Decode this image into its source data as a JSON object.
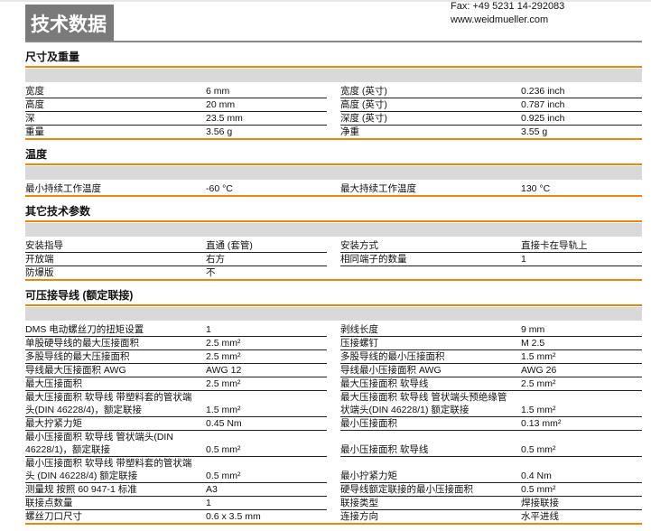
{
  "header": {
    "title": "技术数据",
    "fax": "Fax: +49 5231 14-292083",
    "website": "www.weidmueller.com"
  },
  "sections": [
    {
      "title": "尺寸及重量",
      "rows": [
        [
          "宽度",
          "6 mm",
          "宽度 (英寸)",
          "0.236 inch"
        ],
        [
          "高度",
          "20 mm",
          "高度 (英寸)",
          "0.787 inch"
        ],
        [
          "深",
          "23.5 mm",
          "深度 (英寸)",
          "0.925 inch"
        ],
        [
          "重量",
          "3.56 g",
          "净重",
          "3.55 g"
        ]
      ]
    },
    {
      "title": "温度",
      "rows": [
        [
          "最小持续工作温度",
          "-60 °C",
          "最大持续工作温度",
          "130 °C"
        ]
      ]
    },
    {
      "title": "其它技术参数",
      "rows": [
        [
          "安装指导",
          "直通 (套管)",
          "安装方式",
          "直接卡在导轨上"
        ],
        [
          "开放端",
          "右方",
          "相同端子的数量",
          "1"
        ],
        [
          "防爆版",
          "不",
          "",
          ""
        ]
      ]
    },
    {
      "title": "可压接导线 (额定联接)",
      "rows": [
        [
          "DMS 电动螺丝刀的扭矩设置",
          "1",
          "剥线长度",
          "9 mm"
        ],
        [
          "单股硬导线的最大压接面积",
          "2.5 mm²",
          "压接螺钉",
          "M 2.5"
        ],
        [
          "多股导线的最大压接面积",
          "2.5 mm²",
          "多股导线的最小压接面积",
          "1.5 mm²"
        ],
        [
          "导线最大压接面积 AWG",
          "AWG 12",
          "导线最小压接面积 AWG",
          "AWG 26"
        ],
        [
          "最大压接面积",
          "2.5 mm²",
          "最大压接面积 软导线",
          "2.5 mm²"
        ],
        [
          "最大压接面积 软导线 带塑料套的管状端\n头(DIN 46228/4)，额定联接",
          "1.5 mm²",
          "最大压接面积 软导线 管状端头预绝缘管\n状端头(DIN 46228/1) 额定联接",
          "1.5 mm²"
        ],
        [
          "最大拧紧力矩",
          "0.45 Nm",
          "最小压接面积",
          "0.13 mm²"
        ],
        [
          "最小压接面积 软导线 管状端头(DIN\n46228/1)，额定联接",
          "0.5 mm²",
          "最小压接面积 软导线\n ",
          "0.5 mm²"
        ],
        [
          "最小压接面积 软导线 带塑料套的管状端\n头 (DIN 46228/4) 额定联接",
          "0.5 mm²",
          "最小拧紧力矩\n ",
          "0.4 Nm"
        ],
        [
          "测量规 按照 60 947-1 标准",
          "A3",
          "硬导线额定联接的最小压接面积",
          "0.5 mm²"
        ],
        [
          "联接点数量",
          "1",
          "联接类型",
          "焊接联接"
        ],
        [
          "螺丝刀口尺寸",
          "0.6 x 3.5 mm",
          "连接方向",
          "水平进线"
        ]
      ]
    }
  ],
  "colors": {
    "accent": "#e8890c",
    "band": "#d9d9d9",
    "title_bg": "#7a7a7a"
  }
}
